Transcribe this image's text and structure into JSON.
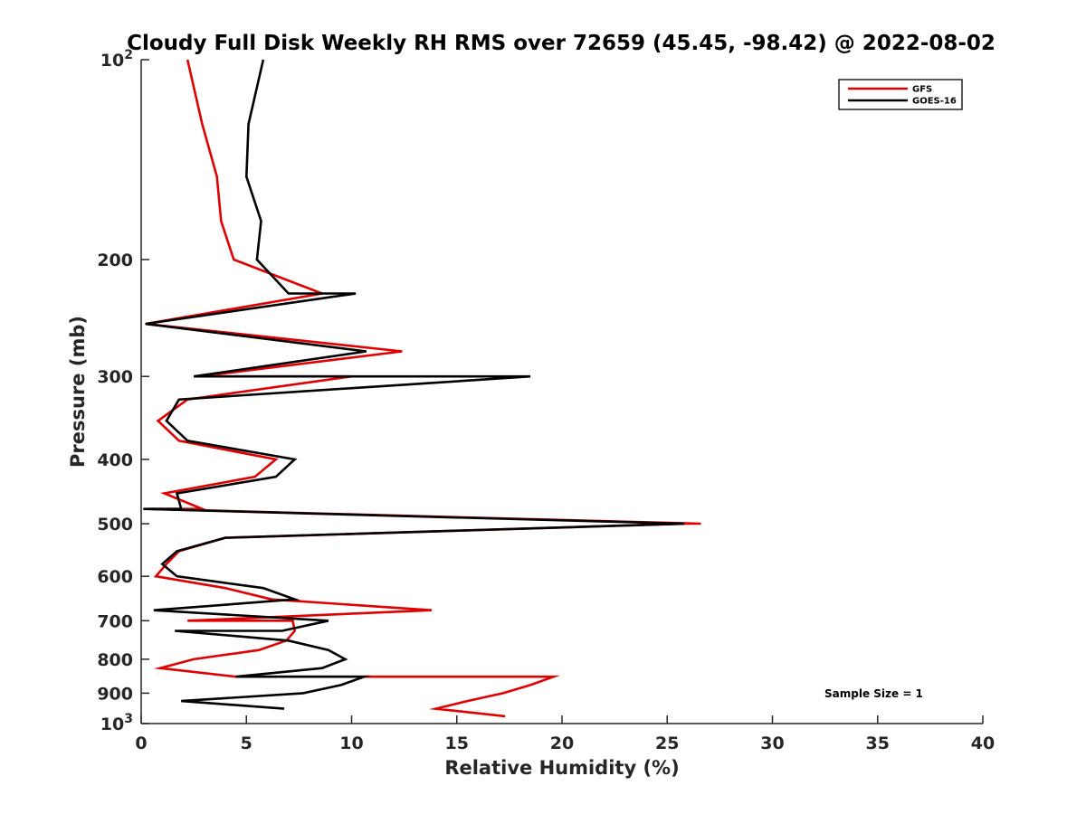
{
  "chart_data": {
    "type": "line",
    "title": "Cloudy Full Disk Weekly RH RMS over 72659 (45.45, -98.42) @ 2022-08-02",
    "xlabel": "Relative Humidity (%)",
    "ylabel": "Pressure (mb)",
    "xlim": [
      0,
      40
    ],
    "ylim": [
      100,
      1000
    ],
    "yscale": "log",
    "y_reversed": true,
    "grid": false,
    "legend_position": "top-right",
    "x_ticks": [
      "0",
      "5",
      "10",
      "15",
      "20",
      "25",
      "30",
      "35",
      "40"
    ],
    "y_ticks": [
      {
        "value": 100,
        "base": "10",
        "exp": "2"
      },
      {
        "value": 200,
        "label": "200"
      },
      {
        "value": 300,
        "label": "300"
      },
      {
        "value": 400,
        "label": "400"
      },
      {
        "value": 500,
        "label": "500"
      },
      {
        "value": 600,
        "label": "600"
      },
      {
        "value": 700,
        "label": "700"
      },
      {
        "value": 800,
        "label": "800"
      },
      {
        "value": 900,
        "label": "900"
      },
      {
        "value": 1000,
        "base": "10",
        "exp": "3"
      }
    ],
    "annotation": "Sample Size = 1",
    "series": [
      {
        "name": "GFS",
        "color": "#e00000",
        "points": [
          [
            2.2,
            100
          ],
          [
            2.9,
            125
          ],
          [
            3.6,
            150
          ],
          [
            3.8,
            175
          ],
          [
            4.4,
            200
          ],
          [
            8.6,
            225
          ],
          [
            0.2,
            250
          ],
          [
            12.4,
            275
          ],
          [
            2.8,
            300
          ],
          [
            10.0,
            300
          ],
          [
            2.2,
            325
          ],
          [
            0.8,
            350
          ],
          [
            1.8,
            375
          ],
          [
            6.4,
            400
          ],
          [
            5.4,
            425
          ],
          [
            1.1,
            450
          ],
          [
            2.9,
            475
          ],
          [
            0.4,
            475
          ],
          [
            26.6,
            500
          ],
          [
            26.0,
            500
          ],
          [
            4.0,
            525
          ],
          [
            1.8,
            550
          ],
          [
            1.2,
            575
          ],
          [
            0.7,
            600
          ],
          [
            4.0,
            625
          ],
          [
            6.2,
            650
          ],
          [
            13.8,
            675
          ],
          [
            2.2,
            700
          ],
          [
            7.2,
            700
          ],
          [
            7.3,
            725
          ],
          [
            6.9,
            750
          ],
          [
            5.6,
            775
          ],
          [
            2.5,
            800
          ],
          [
            0.9,
            825
          ],
          [
            4.5,
            850
          ],
          [
            19.6,
            850
          ],
          [
            18.5,
            875
          ],
          [
            17.2,
            900
          ],
          [
            15.5,
            925
          ],
          [
            14.0,
            950
          ],
          [
            17.3,
            975
          ]
        ]
      },
      {
        "name": "GOES-16",
        "color": "#000000",
        "points": [
          [
            5.8,
            100
          ],
          [
            5.1,
            125
          ],
          [
            5.0,
            150
          ],
          [
            5.7,
            175
          ],
          [
            5.5,
            200
          ],
          [
            7.0,
            225
          ],
          [
            10.2,
            225
          ],
          [
            0.2,
            250
          ],
          [
            10.7,
            275
          ],
          [
            2.5,
            300
          ],
          [
            18.5,
            300
          ],
          [
            1.8,
            325
          ],
          [
            1.2,
            350
          ],
          [
            2.2,
            375
          ],
          [
            7.3,
            400
          ],
          [
            6.4,
            425
          ],
          [
            1.7,
            450
          ],
          [
            1.9,
            475
          ],
          [
            0.1,
            475
          ],
          [
            25.8,
            500
          ],
          [
            4.0,
            525
          ],
          [
            1.7,
            550
          ],
          [
            1.0,
            575
          ],
          [
            1.7,
            600
          ],
          [
            5.8,
            625
          ],
          [
            7.3,
            650
          ],
          [
            0.6,
            675
          ],
          [
            8.9,
            700
          ],
          [
            6.7,
            725
          ],
          [
            1.6,
            725
          ],
          [
            7.0,
            750
          ],
          [
            8.9,
            775
          ],
          [
            9.7,
            800
          ],
          [
            8.6,
            825
          ],
          [
            4.5,
            850
          ],
          [
            10.6,
            850
          ],
          [
            9.5,
            875
          ],
          [
            7.7,
            900
          ],
          [
            1.9,
            925
          ],
          [
            6.8,
            950
          ]
        ]
      }
    ]
  }
}
